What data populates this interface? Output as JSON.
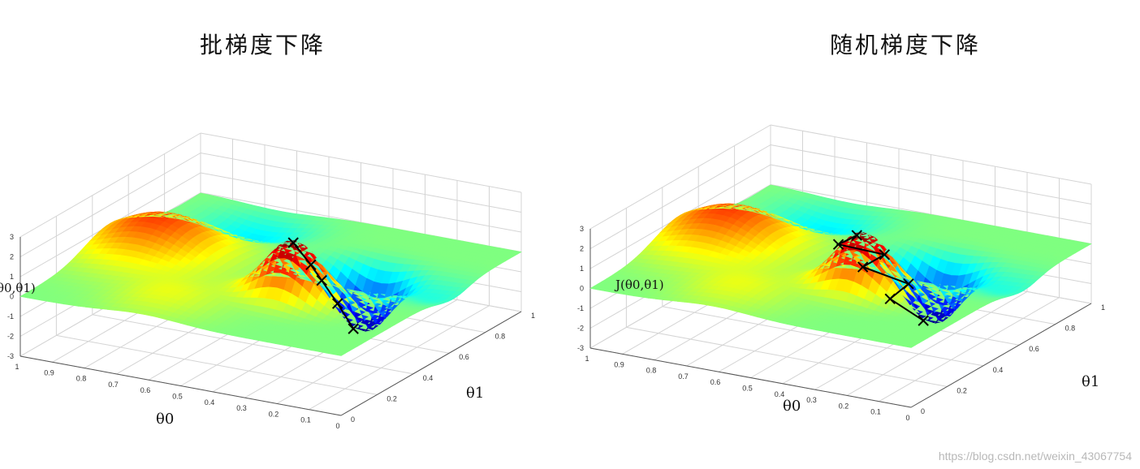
{
  "watermark": "https://blog.csdn.net/weixin_43067754",
  "chart_data": [
    {
      "type": "surface",
      "title": "批梯度下降",
      "zlabel": "θ0,θ1)",
      "xlabel": "θ0",
      "ylabel": "θ1",
      "theta0_ticks": [
        "1",
        "0.9",
        "0.8",
        "0.7",
        "0.6",
        "0.5",
        "0.4",
        "0.3",
        "0.2",
        "0.1",
        "0"
      ],
      "theta1_ticks": [
        "0",
        "0.2",
        "0.4",
        "0.6",
        "0.8",
        "1"
      ],
      "z_ticks": [
        "3",
        "2",
        "1",
        "0",
        "-1",
        "-2",
        "-3"
      ],
      "zlim": [
        -3,
        3
      ],
      "grid": true,
      "path": [
        {
          "theta0": 0.34,
          "theta1": 0.34,
          "J": 2.9
        },
        {
          "theta0": 0.33,
          "theta1": 0.42,
          "J": 1.4
        },
        {
          "theta0": 0.33,
          "theta1": 0.48,
          "J": 0.3
        },
        {
          "theta0": 0.32,
          "theta1": 0.55,
          "J": -1.2
        },
        {
          "theta0": 0.31,
          "theta1": 0.62,
          "J": -2.8
        }
      ]
    },
    {
      "type": "surface",
      "title": "随机梯度下降",
      "zlabel": "J(θ0,θ1)",
      "xlabel": "θ0",
      "ylabel": "θ1",
      "theta0_ticks": [
        "1",
        "0.9",
        "0.8",
        "0.7",
        "0.6",
        "0.5",
        "0.4",
        "0.3",
        "0.2",
        "0.1",
        "0"
      ],
      "theta1_ticks": [
        "0",
        "0.2",
        "0.4",
        "0.6",
        "0.8",
        "1"
      ],
      "z_ticks": [
        "3",
        "2",
        "1",
        "0",
        "-1",
        "-2",
        "-3"
      ],
      "zlim": [
        -3,
        3
      ],
      "grid": true,
      "path": [
        {
          "theta0": 0.36,
          "theta1": 0.34,
          "J": 2.8
        },
        {
          "theta0": 0.44,
          "theta1": 0.38,
          "J": 1.9
        },
        {
          "theta0": 0.33,
          "theta1": 0.44,
          "J": 1.4
        },
        {
          "theta0": 0.42,
          "theta1": 0.48,
          "J": 0.3
        },
        {
          "theta0": 0.3,
          "theta1": 0.52,
          "J": -0.4
        },
        {
          "theta0": 0.38,
          "theta1": 0.56,
          "J": -1.6
        },
        {
          "theta0": 0.31,
          "theta1": 0.62,
          "J": -2.8
        }
      ]
    }
  ]
}
